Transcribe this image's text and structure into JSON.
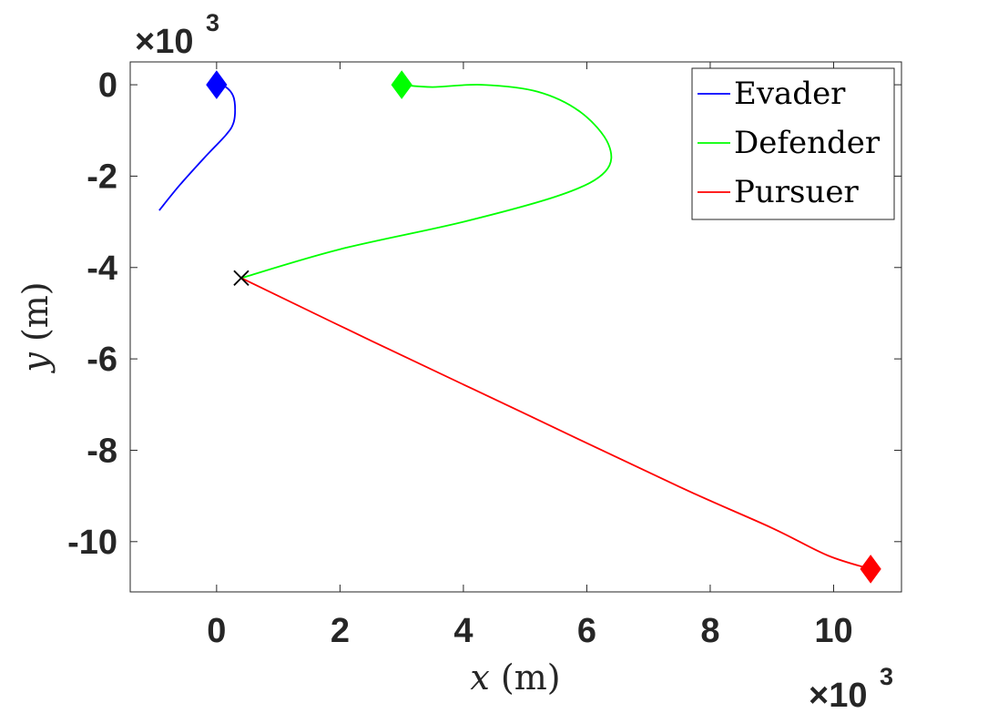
{
  "chart_data": {
    "type": "line",
    "xlabel_var": "x",
    "xlabel_unit": " (m)",
    "ylabel_var": "y",
    "ylabel_unit": " (m)",
    "x_multiplier": "×10",
    "x_multiplier_exp": "3",
    "y_multiplier": "×10",
    "y_multiplier_exp": "3",
    "xlim": [
      -1.4,
      11.1
    ],
    "ylim": [
      -11.1,
      0.5
    ],
    "xticks": [
      0,
      2,
      4,
      6,
      8,
      10
    ],
    "yticks": [
      0,
      -2,
      -4,
      -6,
      -8,
      -10
    ],
    "xtick_labels": [
      "0",
      "2",
      "4",
      "6",
      "8",
      "10"
    ],
    "ytick_labels": [
      "0",
      "-2",
      "-4",
      "-6",
      "-8",
      "-10"
    ],
    "grid": false,
    "legend_position": "top-right",
    "series": [
      {
        "name": "Evader",
        "color": "#0000ff",
        "x": [
          0.0,
          0.15,
          0.27,
          0.3,
          0.27,
          0.15,
          -0.2,
          -0.6,
          -0.93
        ],
        "y": [
          0.0,
          -0.05,
          -0.25,
          -0.55,
          -0.85,
          -1.1,
          -1.6,
          -2.2,
          -2.75
        ],
        "start_marker": {
          "x": 0.0,
          "y": 0.0,
          "shape": "diamond"
        }
      },
      {
        "name": "Defender",
        "color": "#00ff00",
        "x": [
          3.0,
          3.5,
          4.3,
          5.2,
          5.9,
          6.35,
          6.3,
          5.6,
          4.0,
          2.0,
          0.4
        ],
        "y": [
          0.0,
          -0.05,
          0.0,
          -0.15,
          -0.6,
          -1.3,
          -1.9,
          -2.4,
          -3.0,
          -3.6,
          -4.23
        ],
        "start_marker": {
          "x": 3.0,
          "y": 0.0,
          "shape": "diamond"
        }
      },
      {
        "name": "Pursuer",
        "color": "#ff0000",
        "x": [
          0.4,
          2.5,
          5.0,
          7.5,
          9.0,
          9.9,
          10.6
        ],
        "y": [
          -4.23,
          -5.6,
          -7.2,
          -8.8,
          -9.7,
          -10.3,
          -10.6
        ],
        "start_marker": {
          "x": 10.6,
          "y": -10.6,
          "shape": "diamond"
        }
      }
    ],
    "annotations": [
      {
        "type": "x-marker",
        "x": 0.4,
        "y": -4.23,
        "color": "#000000"
      }
    ]
  }
}
